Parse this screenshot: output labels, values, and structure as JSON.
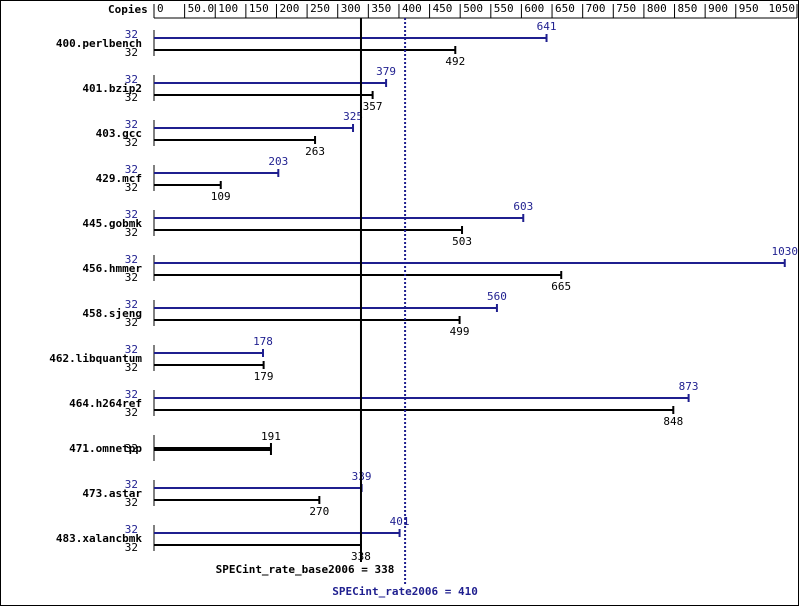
{
  "chart_data": {
    "type": "spec-bar",
    "copies_header": "Copies",
    "categories": [
      "400.perlbench",
      "401.bzip2",
      "403.gcc",
      "429.mcf",
      "445.gobmk",
      "456.hmmer",
      "458.sjeng",
      "462.libquantum",
      "464.h264ref",
      "471.omnetpp",
      "473.astar",
      "483.xalancbmk"
    ],
    "peak": {
      "color": "#1f1f8f",
      "copies": [
        32,
        32,
        32,
        32,
        32,
        32,
        32,
        32,
        32,
        null,
        32,
        32
      ],
      "values": [
        641,
        379,
        325,
        203,
        603,
        1030,
        560,
        178,
        873,
        null,
        339,
        401
      ]
    },
    "base": {
      "color": "#000000",
      "copies": [
        32,
        32,
        32,
        32,
        32,
        32,
        32,
        32,
        32,
        32,
        32,
        32
      ],
      "values": [
        492,
        357,
        263,
        109,
        503,
        665,
        499,
        179,
        848,
        191,
        270,
        338
      ]
    },
    "xlim": [
      0,
      1050
    ],
    "xticks": [
      0,
      {
        "value": 50,
        "label": "50.0"
      },
      100,
      150,
      200,
      250,
      300,
      350,
      400,
      450,
      500,
      550,
      600,
      650,
      700,
      750,
      800,
      850,
      900,
      950,
      1050
    ],
    "base_ref": {
      "label": "SPECint_rate_base2006 = 338",
      "value": 338
    },
    "peak_ref": {
      "label": "SPECint_rate2006 = 410",
      "value": 410
    }
  }
}
